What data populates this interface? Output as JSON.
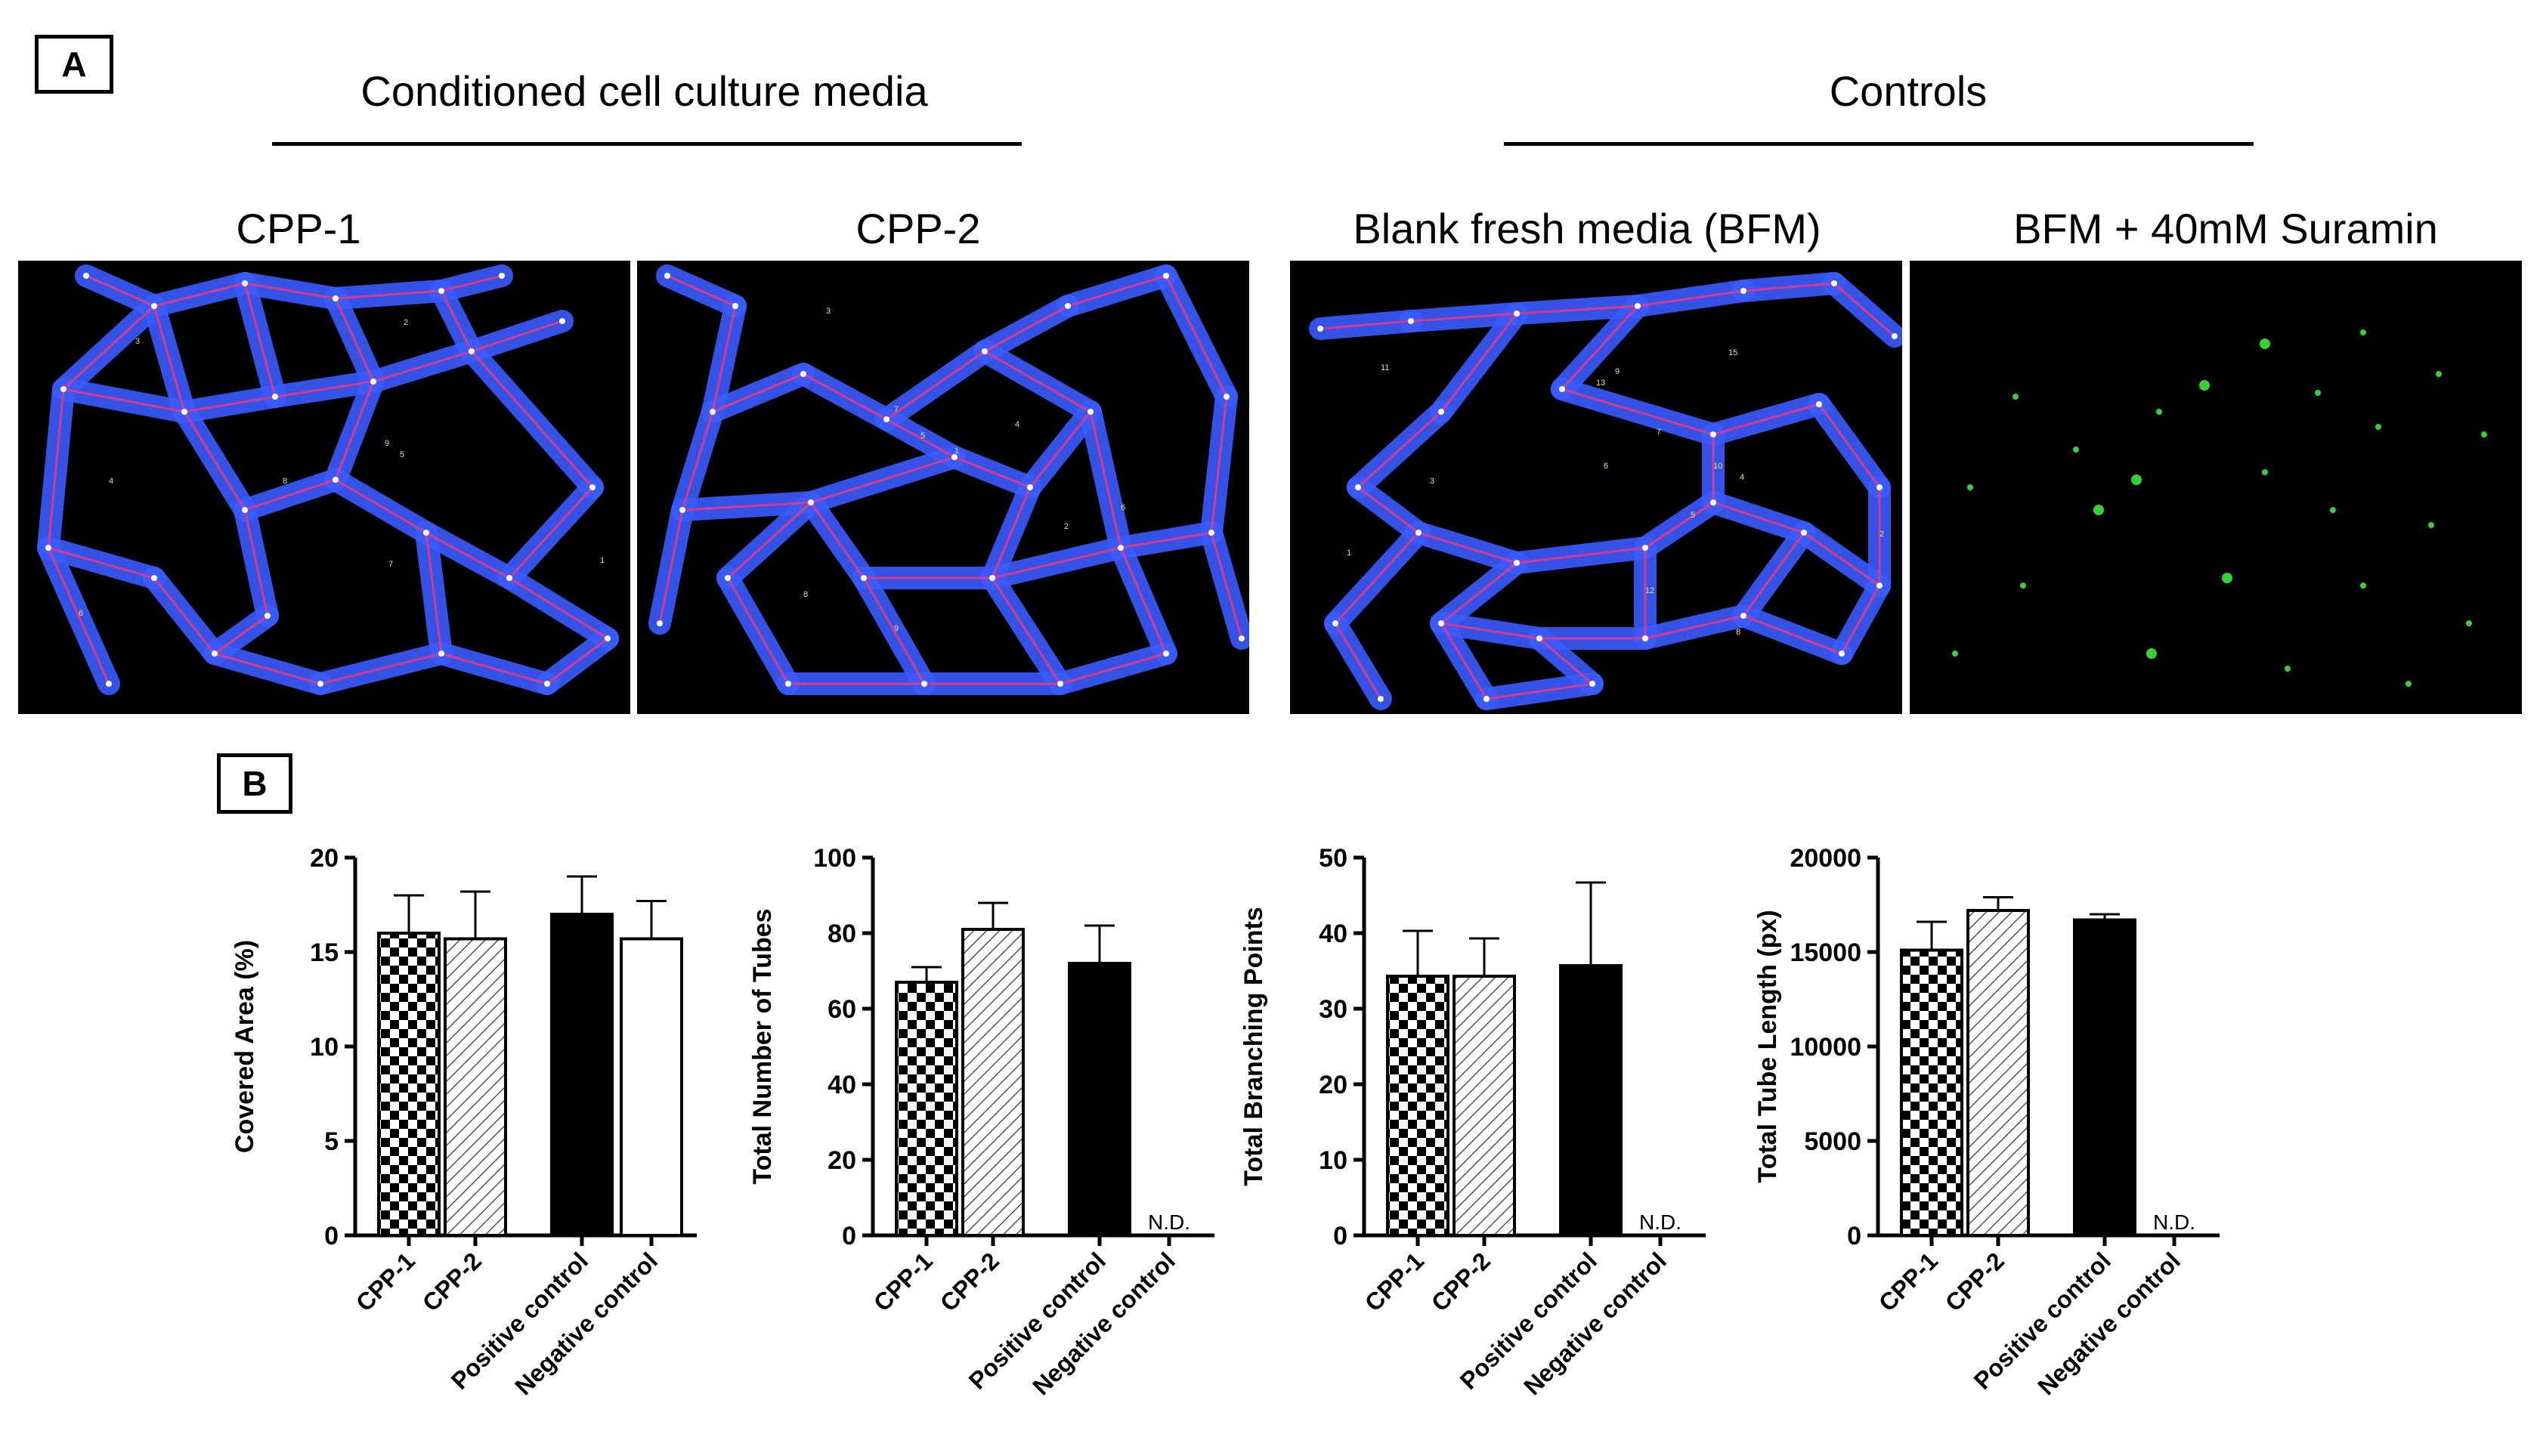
{
  "panel_a": {
    "label": "A",
    "groups": [
      {
        "title": "Conditioned cell culture media"
      },
      {
        "title": "Controls"
      }
    ],
    "images": [
      {
        "title": "CPP-1",
        "numbers": [
          "3",
          "2",
          "4",
          "5",
          "6",
          "7",
          "1",
          "8",
          "9"
        ]
      },
      {
        "title": "CPP-2",
        "numbers": [
          "3",
          "1",
          "5",
          "4",
          "6",
          "9",
          "7",
          "8",
          "2"
        ]
      },
      {
        "title": "Blank fresh media (BFM)",
        "numbers": [
          "11",
          "15",
          "7",
          "10",
          "1",
          "12",
          "8",
          "3",
          "4",
          "5",
          "9",
          "13",
          "6",
          "2"
        ]
      },
      {
        "title": "BFM + 40mM Suramin",
        "numbers": []
      }
    ]
  },
  "panel_b": {
    "label": "B"
  },
  "colors": {
    "tube_blue": "#3a5cff",
    "tube_magenta": "#d43b8f",
    "cell_green": "#35d135",
    "background": "#000000"
  },
  "chart_data": [
    {
      "type": "bar",
      "categories": [
        "CPP-1",
        "CPP-2",
        "Positive control",
        "Negative control"
      ],
      "values": [
        16.0,
        15.7,
        17.0,
        15.7
      ],
      "errors": [
        2.0,
        2.5,
        2.0,
        2.0
      ],
      "value_labels": [
        "",
        "",
        "",
        ""
      ],
      "fills": [
        "checker",
        "hatch",
        "solid",
        "white"
      ],
      "ylabel": "Covered Area (%)",
      "ylim": [
        0,
        20
      ],
      "yticks": [
        "0",
        "5",
        "10",
        "15",
        "20"
      ]
    },
    {
      "type": "bar",
      "categories": [
        "CPP-1",
        "CPP-2",
        "Positive control",
        "Negative control"
      ],
      "values": [
        67,
        81,
        72,
        0
      ],
      "errors": [
        4,
        7,
        10,
        0
      ],
      "value_labels": [
        "",
        "",
        "",
        "N.D."
      ],
      "fills": [
        "checker",
        "hatch",
        "solid",
        "white"
      ],
      "ylabel": "Total Number of Tubes",
      "ylim": [
        0,
        100
      ],
      "yticks": [
        "0",
        "20",
        "40",
        "60",
        "80",
        "100"
      ]
    },
    {
      "type": "bar",
      "categories": [
        "CPP-1",
        "CPP-2",
        "Positive control",
        "Negative control"
      ],
      "values": [
        34.3,
        34.3,
        35.7,
        0
      ],
      "errors": [
        6.0,
        5.0,
        11.0,
        0
      ],
      "value_labels": [
        "",
        "",
        "",
        "N.D."
      ],
      "fills": [
        "checker",
        "hatch",
        "solid",
        "white"
      ],
      "ylabel": "Total Branching Points",
      "ylim": [
        0,
        50
      ],
      "yticks": [
        "0",
        "10",
        "20",
        "30",
        "40",
        "50"
      ]
    },
    {
      "type": "bar",
      "categories": [
        "CPP-1",
        "CPP-2",
        "Positive control",
        "Negative control"
      ],
      "values": [
        15100,
        17200,
        16700,
        0
      ],
      "errors": [
        1500,
        700,
        300,
        0
      ],
      "value_labels": [
        "",
        "",
        "",
        "N.D."
      ],
      "fills": [
        "checker",
        "hatch",
        "solid",
        "white"
      ],
      "ylabel": "Total Tube Length (px)",
      "ylim": [
        0,
        20000
      ],
      "yticks": [
        "0",
        "5000",
        "10000",
        "15000",
        "20000"
      ]
    }
  ]
}
